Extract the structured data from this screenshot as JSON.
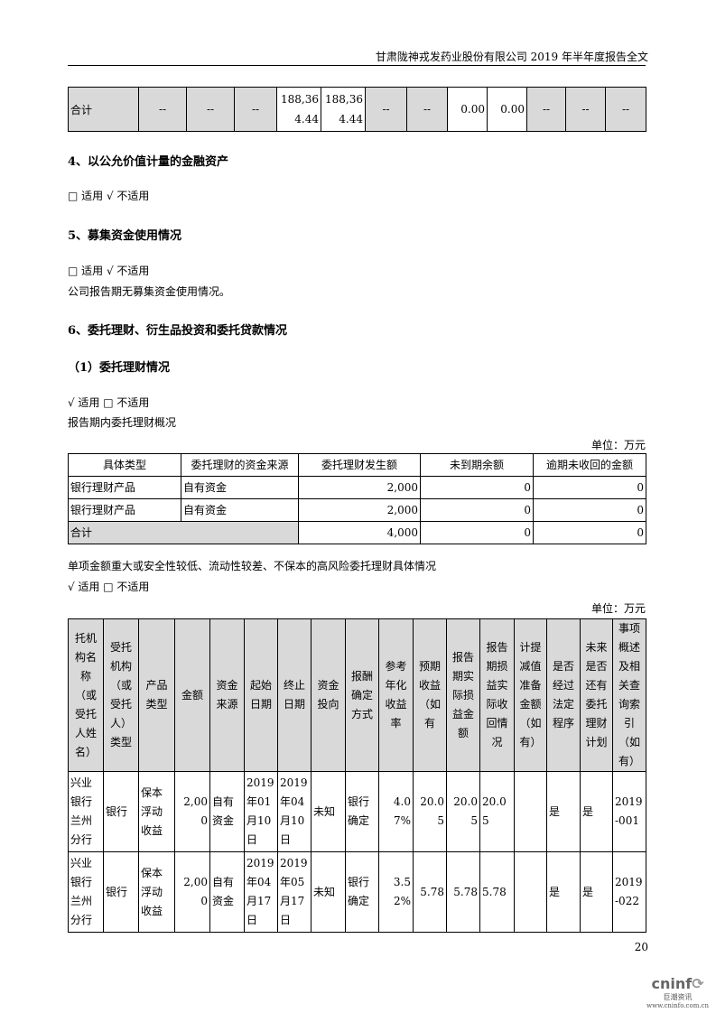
{
  "header": {
    "title": "甘肃陇神戎发药业股份有限公司 2019 年半年度报告全文"
  },
  "top_table": {
    "cells": [
      "合计",
      "--",
      "--",
      "--",
      "188,364.44",
      "188,364.44",
      "--",
      "--",
      "0.00",
      "0.00",
      "--",
      "--",
      "--"
    ]
  },
  "s4": {
    "title": "4、以公允价值计量的金融资产",
    "applicable": "□ 适用 √ 不适用"
  },
  "s5": {
    "title": "5、募集资金使用情况",
    "applicable": "□ 适用 √ 不适用",
    "note": "公司报告期无募集资金使用情况。"
  },
  "s6": {
    "title": "6、委托理财、衍生品投资和委托贷款情况",
    "sub": "（1）委托理财情况",
    "applicable": "√ 适用 □ 不适用",
    "overview": "报告期内委托理财概况",
    "unit": "单位：万元",
    "summary_table": {
      "headers": [
        "具体类型",
        "委托理财的资金来源",
        "委托理财发生额",
        "未到期余额",
        "逾期未收回的金额"
      ],
      "rows": [
        [
          "银行理财产品",
          "自有资金",
          "2,000",
          "0",
          "0"
        ],
        [
          "银行理财产品",
          "自有资金",
          "2,000",
          "0",
          "0"
        ],
        [
          "合计",
          "",
          "4,000",
          "0",
          "0"
        ]
      ]
    },
    "detail_title": "单项金额重大或安全性较低、流动性较差、不保本的高风险委托理财具体情况",
    "detail_applicable": "√ 适用 □ 不适用",
    "detail_unit": "单位：万元",
    "detail_table": {
      "headers": [
        "托机构名称（或受托人姓名）",
        "受托机构（或受托人）类型",
        "产品类型",
        "金额",
        "资金来源",
        "起始日期",
        "终止日期",
        "资金投向",
        "报酬确定方式",
        "参考年化收益率",
        "预期收益（如有",
        "报告期实际损益金额",
        "报告期损益实际收回情况",
        "计提减值准备金额（如有）",
        "是否经过法定程序",
        "未来是否还有委托理财计划",
        "事项概述及相关查询索引（如有）"
      ],
      "rows": [
        [
          "兴业银行兰州分行",
          "银行",
          "保本浮动收益",
          "2,000",
          "自有资金",
          "2019年01月10日",
          "2019年04月10日",
          "未知",
          "银行确定",
          "4.07%",
          "20.05",
          "20.05",
          "20.05",
          "",
          "是",
          "是",
          "2019-001"
        ],
        [
          "兴业银行兰州分行",
          "银行",
          "保本浮动收益",
          "2,000",
          "自有资金",
          "2019年04月17日",
          "2019年05月17日",
          "未知",
          "银行确定",
          "3.52%",
          "5.78",
          "5.78",
          "5.78",
          "",
          "是",
          "是",
          "2019-022"
        ]
      ]
    }
  },
  "footer": {
    "page": "20",
    "logo": "cninf 巨潮资讯 www.cninfo.com.cn"
  }
}
